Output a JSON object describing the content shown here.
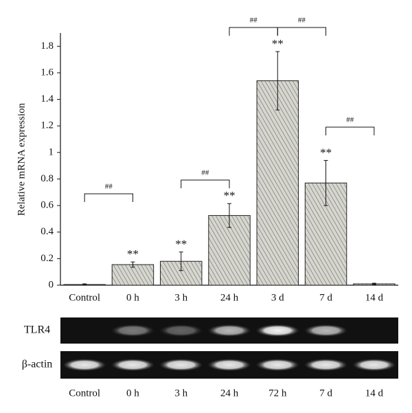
{
  "chart_data": {
    "type": "bar",
    "y_label": "Relative mRNA expression",
    "categories": [
      "Control",
      "0 h",
      "3 h",
      "24 h",
      "3 d",
      "7 d",
      "14 d"
    ],
    "values": [
      0.005,
      0.155,
      0.18,
      0.525,
      1.54,
      0.77,
      0.01
    ],
    "errors": [
      0.005,
      0.02,
      0.07,
      0.09,
      0.22,
      0.17,
      0.005
    ],
    "annotations": [
      null,
      "**",
      "**",
      "**",
      "**",
      "**",
      null
    ],
    "brackets": [
      {
        "from": "Control",
        "to": "0 h",
        "label": "##"
      },
      {
        "from": "3 h",
        "to": "24 h",
        "label": "##"
      },
      {
        "from": "24 h",
        "to": "3 d",
        "label": "##"
      },
      {
        "from": "3 d",
        "to": "7 d",
        "label": "##"
      },
      {
        "from": "7 d",
        "to": "14 d",
        "label": "##"
      }
    ],
    "color": "#c9c9c2",
    "ylim": [
      0,
      1.9
    ],
    "yticks": [
      0,
      0.2,
      0.4,
      0.6,
      0.8,
      1,
      1.2,
      1.4,
      1.6,
      1.8
    ]
  },
  "gel": {
    "rows": [
      "TLR4",
      "β-actin"
    ],
    "lanes": [
      "Control",
      "0 h",
      "3 h",
      "24 h",
      "72 h",
      "7 d",
      "14 d"
    ]
  }
}
